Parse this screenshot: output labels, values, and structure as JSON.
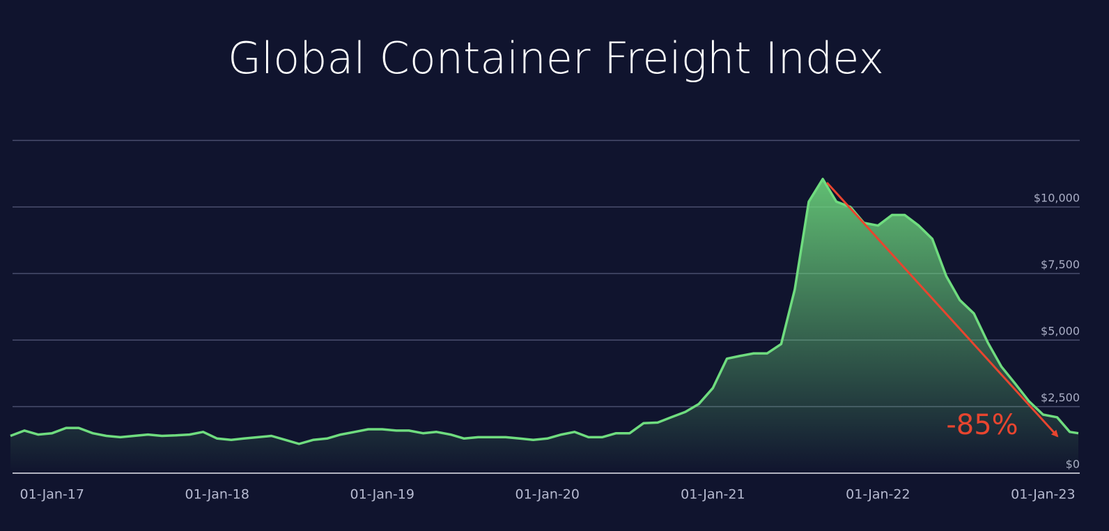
{
  "chart_data": {
    "type": "area-line",
    "title": "Global Container Freight Index",
    "annotation": "-85%",
    "annotation_color": "#e8452f",
    "color": "#6fdc7f",
    "x": [
      "2016-10-01",
      "2016-11-01",
      "2016-12-01",
      "2017-01-01",
      "2017-02-01",
      "2017-03-01",
      "2017-04-01",
      "2017-05-01",
      "2017-06-01",
      "2017-07-01",
      "2017-08-01",
      "2017-09-01",
      "2017-10-01",
      "2017-11-01",
      "2017-12-01",
      "2018-01-01",
      "2018-02-01",
      "2018-03-01",
      "2018-04-01",
      "2018-05-01",
      "2018-06-01",
      "2018-07-01",
      "2018-08-01",
      "2018-09-01",
      "2018-10-01",
      "2018-11-01",
      "2018-12-01",
      "2019-01-01",
      "2019-02-01",
      "2019-03-01",
      "2019-04-01",
      "2019-05-01",
      "2019-06-01",
      "2019-07-01",
      "2019-08-01",
      "2019-09-01",
      "2019-10-01",
      "2019-11-01",
      "2019-12-01",
      "2020-01-01",
      "2020-02-01",
      "2020-03-01",
      "2020-04-01",
      "2020-05-01",
      "2020-06-01",
      "2020-07-01",
      "2020-08-01",
      "2020-09-01",
      "2020-10-01",
      "2020-11-01",
      "2020-12-01",
      "2021-01-01",
      "2021-02-01",
      "2021-03-01",
      "2021-04-01",
      "2021-05-01",
      "2021-06-01",
      "2021-07-01",
      "2021-08-01",
      "2021-09-01",
      "2021-10-01",
      "2021-11-01",
      "2021-12-01",
      "2022-01-01",
      "2022-02-01",
      "2022-03-01",
      "2022-04-01",
      "2022-05-01",
      "2022-06-01",
      "2022-07-01",
      "2022-08-01",
      "2022-09-01",
      "2022-10-01",
      "2022-11-01",
      "2022-12-01",
      "2023-01-01",
      "2023-02-01",
      "2023-03-01",
      "2023-03-20"
    ],
    "values": [
      1400,
      1600,
      1450,
      1500,
      1700,
      1700,
      1500,
      1400,
      1350,
      1400,
      1450,
      1400,
      1420,
      1450,
      1550,
      1300,
      1250,
      1300,
      1350,
      1400,
      1250,
      1100,
      1250,
      1300,
      1450,
      1550,
      1650,
      1650,
      1600,
      1600,
      1500,
      1550,
      1450,
      1300,
      1350,
      1350,
      1350,
      1300,
      1250,
      1300,
      1450,
      1550,
      1350,
      1350,
      1500,
      1500,
      1880,
      1900,
      2100,
      2300,
      2600,
      3200,
      4300,
      4400,
      4500,
      4500,
      4850,
      6900,
      10200,
      11050,
      10200,
      10000,
      9400,
      9300,
      9700,
      9700,
      9300,
      8800,
      7400,
      6500,
      6000,
      4900,
      4000,
      3350,
      2700,
      2200,
      2100,
      1550,
      1500
    ],
    "xlim": [
      "2016-10-01",
      "2023-03-20"
    ],
    "xticks": [
      {
        "value": "2017-01-01",
        "label": "01-Jan-17"
      },
      {
        "value": "2018-01-01",
        "label": "01-Jan-18"
      },
      {
        "value": "2019-01-01",
        "label": "01-Jan-19"
      },
      {
        "value": "2020-01-01",
        "label": "01-Jan-20"
      },
      {
        "value": "2021-01-01",
        "label": "01-Jan-21"
      },
      {
        "value": "2022-01-01",
        "label": "01-Jan-22"
      },
      {
        "value": "2023-01-01",
        "label": "01-Jan-23"
      }
    ],
    "ylim": [
      0,
      12500
    ],
    "yticks": [
      {
        "value": 0,
        "label": "$0"
      },
      {
        "value": 2500,
        "label": "$2,500"
      },
      {
        "value": 5000,
        "label": "$5,000"
      },
      {
        "value": 7500,
        "label": "$7,500"
      },
      {
        "value": 10000,
        "label": "$10,000"
      }
    ],
    "grid": true
  }
}
